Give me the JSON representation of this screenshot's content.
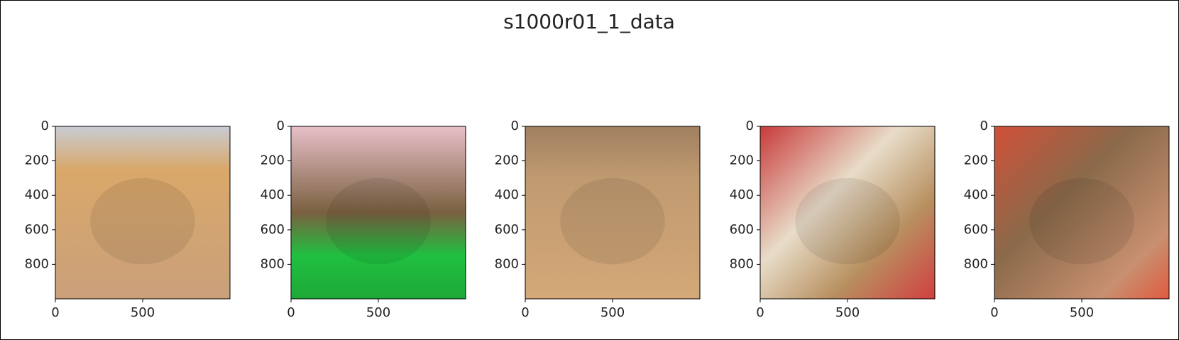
{
  "title": "s1000r01_1_data",
  "chart_data": [
    {
      "type": "image",
      "xlim": [
        0,
        1000
      ],
      "ylim": [
        1000,
        0
      ],
      "xticks": [
        0,
        500
      ],
      "yticks": [
        0,
        200,
        400,
        600,
        800
      ]
    },
    {
      "type": "image",
      "xlim": [
        0,
        1000
      ],
      "ylim": [
        1000,
        0
      ],
      "xticks": [
        0,
        500
      ],
      "yticks": [
        0,
        200,
        400,
        600,
        800
      ]
    },
    {
      "type": "image",
      "xlim": [
        0,
        1000
      ],
      "ylim": [
        1000,
        0
      ],
      "xticks": [
        0,
        500
      ],
      "yticks": [
        0,
        200,
        400,
        600,
        800
      ]
    },
    {
      "type": "image",
      "xlim": [
        0,
        1000
      ],
      "ylim": [
        1000,
        0
      ],
      "xticks": [
        0,
        500
      ],
      "yticks": [
        0,
        200,
        400,
        600,
        800
      ]
    },
    {
      "type": "image",
      "xlim": [
        0,
        1000
      ],
      "ylim": [
        1000,
        0
      ],
      "xticks": [
        0,
        500
      ],
      "yticks": [
        0,
        200,
        400,
        600,
        800
      ]
    }
  ]
}
